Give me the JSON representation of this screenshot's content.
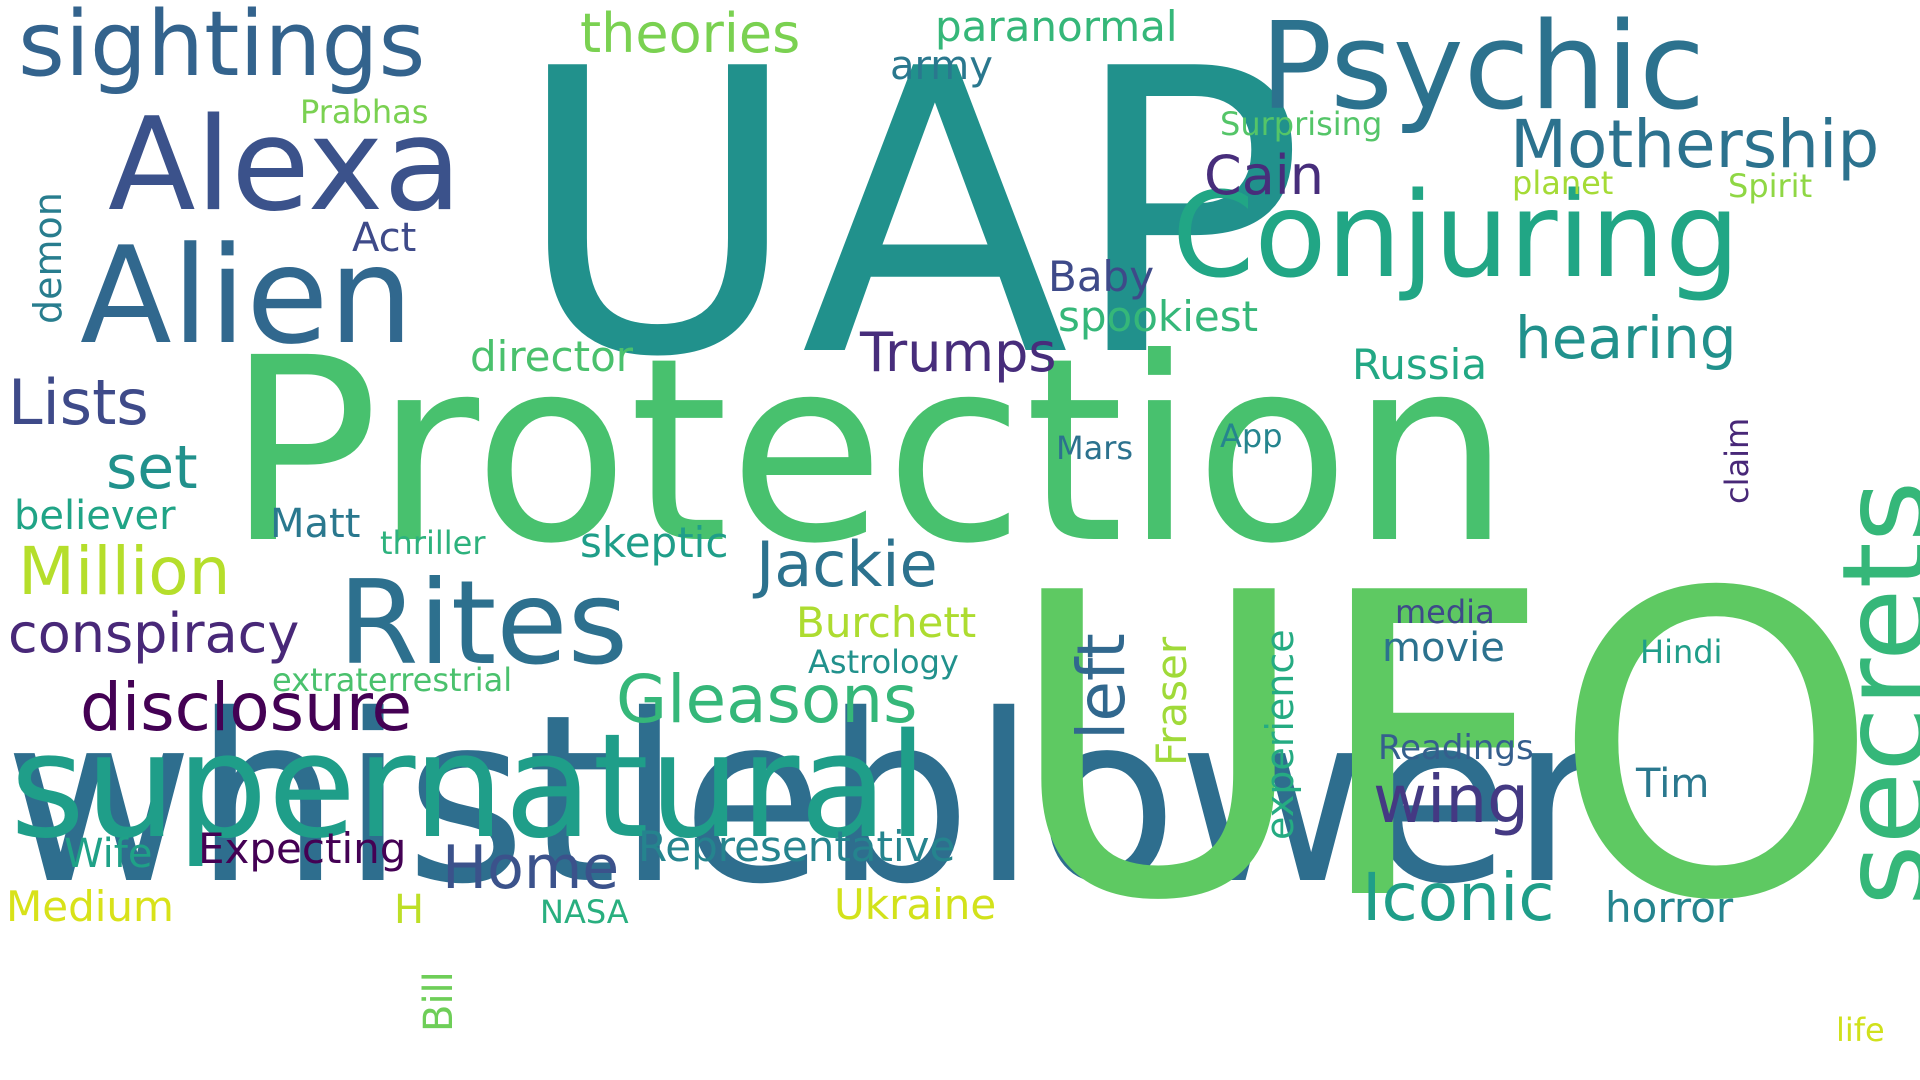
{
  "words": [
    {
      "text": "whistleblower",
      "color": "#2e6e8e",
      "orientation": "horizontal"
    },
    {
      "text": "UFO",
      "color": "#5ec962",
      "orientation": "horizontal"
    },
    {
      "text": "UAP",
      "color": "#21918c",
      "orientation": "horizontal"
    },
    {
      "text": "Protection",
      "color": "#48c16e",
      "orientation": "horizontal"
    },
    {
      "text": "supernatural",
      "color": "#1f9e89",
      "orientation": "horizontal"
    },
    {
      "text": "Psychic",
      "color": "#2c728e",
      "orientation": "horizontal"
    },
    {
      "text": "Conjuring",
      "color": "#21a685",
      "orientation": "horizontal"
    },
    {
      "text": "Alexa",
      "color": "#3b528b",
      "orientation": "horizontal"
    },
    {
      "text": "Alien",
      "color": "#31688e",
      "orientation": "horizontal"
    },
    {
      "text": "sightings",
      "color": "#33638d",
      "orientation": "horizontal"
    },
    {
      "text": "secrets",
      "color": "#35b779",
      "orientation": "vertical"
    },
    {
      "text": "Rites",
      "color": "#2d708e",
      "orientation": "horizontal"
    },
    {
      "text": "Mothership",
      "color": "#2c728e",
      "orientation": "horizontal"
    },
    {
      "text": "theories",
      "color": "#7ad151",
      "orientation": "horizontal"
    },
    {
      "text": "paranormal",
      "color": "#35b779",
      "orientation": "horizontal"
    },
    {
      "text": "hearing",
      "color": "#21918c",
      "orientation": "horizontal"
    },
    {
      "text": "Trumps",
      "color": "#472d7b",
      "orientation": "horizontal"
    },
    {
      "text": "Million",
      "color": "#b5de2b",
      "orientation": "horizontal"
    },
    {
      "text": "disclosure",
      "color": "#440154",
      "orientation": "horizontal"
    },
    {
      "text": "conspiracy",
      "color": "#482878",
      "orientation": "horizontal"
    },
    {
      "text": "Gleasons",
      "color": "#35b779",
      "orientation": "horizontal"
    },
    {
      "text": "Jackie",
      "color": "#2c728e",
      "orientation": "horizontal"
    },
    {
      "text": "Lists",
      "color": "#3e4a89",
      "orientation": "horizontal"
    },
    {
      "text": "Home",
      "color": "#3b528b",
      "orientation": "horizontal"
    },
    {
      "text": "Iconic",
      "color": "#1f9e89",
      "orientation": "horizontal"
    },
    {
      "text": "wing",
      "color": "#443983",
      "orientation": "horizontal"
    },
    {
      "text": "left",
      "color": "#31688e",
      "orientation": "vertical"
    },
    {
      "text": "set",
      "color": "#21918c",
      "orientation": "horizontal"
    },
    {
      "text": "Cain",
      "color": "#472d7b",
      "orientation": "horizontal"
    },
    {
      "text": "Burchett",
      "color": "#addc30",
      "orientation": "horizontal"
    },
    {
      "text": "Representative",
      "color": "#25848e",
      "orientation": "horizontal"
    },
    {
      "text": "Ukraine",
      "color": "#d2e21b",
      "orientation": "horizontal"
    },
    {
      "text": "horror",
      "color": "#25848e",
      "orientation": "horizontal"
    },
    {
      "text": "Medium",
      "color": "#d8e219",
      "orientation": "horizontal"
    },
    {
      "text": "Expecting",
      "color": "#440154",
      "orientation": "horizontal"
    },
    {
      "text": "Wife",
      "color": "#1fa187",
      "orientation": "horizontal"
    },
    {
      "text": "believer",
      "color": "#20a486",
      "orientation": "horizontal"
    },
    {
      "text": "Matt",
      "color": "#2a788e",
      "orientation": "horizontal"
    },
    {
      "text": "skeptic",
      "color": "#1f9e89",
      "orientation": "horizontal"
    },
    {
      "text": "Russia",
      "color": "#22a884",
      "orientation": "horizontal"
    },
    {
      "text": "spookiest",
      "color": "#35b779",
      "orientation": "horizontal"
    },
    {
      "text": "Baby",
      "color": "#3e4a89",
      "orientation": "horizontal"
    },
    {
      "text": "Act",
      "color": "#3e4a89",
      "orientation": "horizontal"
    },
    {
      "text": "director",
      "color": "#4ac16d",
      "orientation": "horizontal"
    },
    {
      "text": "army",
      "color": "#2a788e",
      "orientation": "horizontal"
    },
    {
      "text": "Prabhas",
      "color": "#7ad151",
      "orientation": "horizontal"
    },
    {
      "text": "Surprising",
      "color": "#54c568",
      "orientation": "horizontal"
    },
    {
      "text": "planet",
      "color": "#a5db36",
      "orientation": "horizontal"
    },
    {
      "text": "Spirit",
      "color": "#8fd744",
      "orientation": "horizontal"
    },
    {
      "text": "demon",
      "color": "#287d8e",
      "orientation": "vertical"
    },
    {
      "text": "thriller",
      "color": "#2db27d",
      "orientation": "horizontal"
    },
    {
      "text": "extraterrestrial",
      "color": "#4ac16d",
      "orientation": "horizontal"
    },
    {
      "text": "Astrology",
      "color": "#21918c",
      "orientation": "horizontal"
    },
    {
      "text": "Fraser",
      "color": "#a0da39",
      "orientation": "vertical"
    },
    {
      "text": "experience",
      "color": "#25ab82",
      "orientation": "vertical"
    },
    {
      "text": "media",
      "color": "#3e4a89",
      "orientation": "horizontal"
    },
    {
      "text": "movie",
      "color": "#2c728e",
      "orientation": "horizontal"
    },
    {
      "text": "Readings",
      "color": "#355f8d",
      "orientation": "horizontal"
    },
    {
      "text": "Tim",
      "color": "#2a788e",
      "orientation": "horizontal"
    },
    {
      "text": "Hindi",
      "color": "#1f9e89",
      "orientation": "horizontal"
    },
    {
      "text": "claim",
      "color": "#482878",
      "orientation": "vertical"
    },
    {
      "text": "Mars",
      "color": "#2c728e",
      "orientation": "horizontal"
    },
    {
      "text": "App",
      "color": "#25858e",
      "orientation": "horizontal"
    },
    {
      "text": "H",
      "color": "#bddf26",
      "orientation": "horizontal"
    },
    {
      "text": "NASA",
      "color": "#29af7f",
      "orientation": "horizontal"
    },
    {
      "text": "Bill",
      "color": "#6ece58",
      "orientation": "vertical"
    },
    {
      "text": "life",
      "color": "#d0e11c",
      "orientation": "horizontal"
    }
  ]
}
